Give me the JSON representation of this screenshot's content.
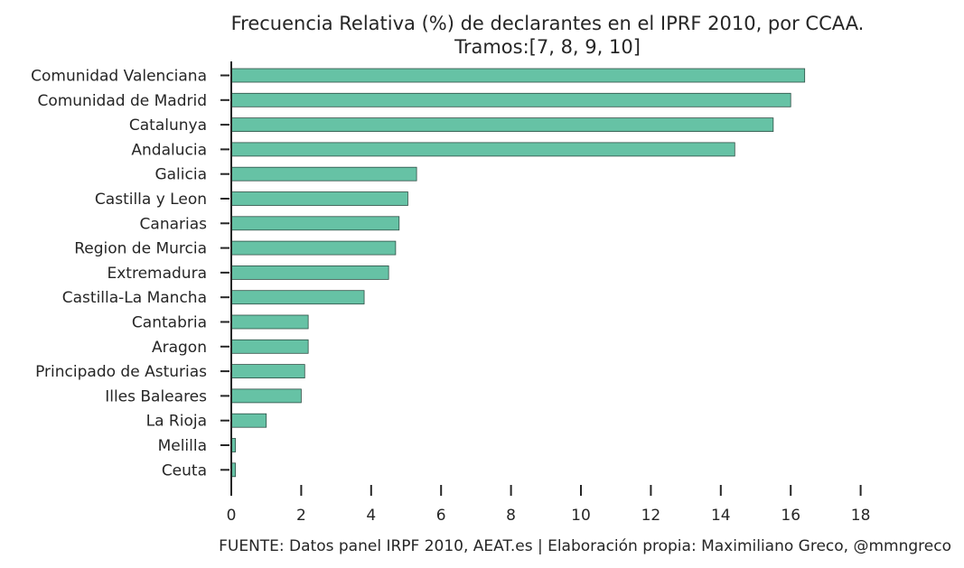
{
  "chart_data": {
    "type": "bar",
    "orientation": "horizontal",
    "title_line1": "Frecuencia Relativa (%) de declarantes en el IPRF 2010, por CCAA.",
    "title_line2": "Tramos:[7, 8, 9, 10]",
    "xlabel": "",
    "ylabel": "",
    "source": "FUENTE: Datos panel IRPF 2010, AEAT.es | Elaboración propia: Maximiliano Greco, @mmngreco",
    "xlim": [
      0,
      19
    ],
    "xticks": [
      0,
      2,
      4,
      6,
      8,
      10,
      12,
      14,
      16,
      18
    ],
    "grid": false,
    "bar_color": "#66c2a5",
    "categories": [
      "Comunidad Valenciana",
      "Comunidad de Madrid",
      "Catalunya",
      "Andalucia",
      "Galicia",
      "Castilla y Leon",
      "Canarias",
      "Region de Murcia",
      "Extremadura",
      "Castilla-La Mancha",
      "Cantabria",
      "Aragon",
      "Principado de Asturias",
      "Illes Baleares",
      "La Rioja",
      "Melilla",
      "Ceuta"
    ],
    "values": [
      16.4,
      16.0,
      15.5,
      14.4,
      5.3,
      5.05,
      4.8,
      4.7,
      4.5,
      3.8,
      2.2,
      2.2,
      2.1,
      2.0,
      1.0,
      0.12,
      0.12
    ]
  }
}
